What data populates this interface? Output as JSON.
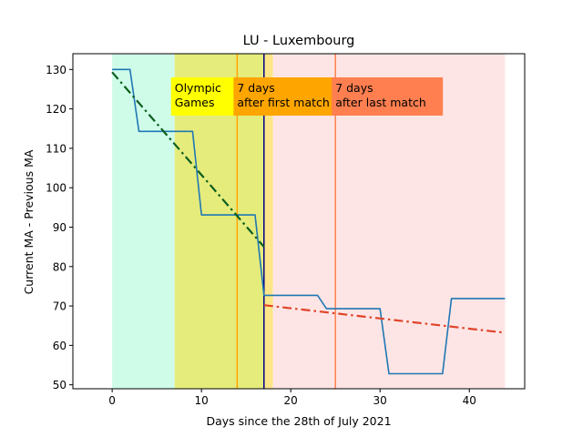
{
  "chart_data": {
    "type": "line",
    "title": "LU - Luxembourg",
    "xlabel": "Days since the 28th of July 2021",
    "ylabel": "Current MA - Previous MA",
    "xlim": [
      -4.4,
      46.2
    ],
    "ylim": [
      49,
      134
    ],
    "xticks": [
      0,
      10,
      20,
      30,
      40
    ],
    "yticks": [
      50,
      60,
      70,
      80,
      90,
      100,
      110,
      120,
      130
    ],
    "grid": false,
    "legend": "none",
    "regions": [
      {
        "from": 0,
        "to": 7,
        "color": "#cffce9"
      },
      {
        "from": 7,
        "to": 17,
        "color": "#e5ec7c"
      },
      {
        "from": 17,
        "to": 18,
        "color": "#fde68a"
      },
      {
        "from": 18,
        "to": 44,
        "color": "#fde5e5"
      }
    ],
    "vlines": [
      {
        "x": 14,
        "color": "#ffa500"
      },
      {
        "x": 17,
        "color": "#00008b"
      },
      {
        "x": 25,
        "color": "#ff7f50"
      }
    ],
    "annotations": [
      {
        "text": [
          "Olympic",
          "Games"
        ],
        "x": 7,
        "y": 128,
        "bg": "#ffff00"
      },
      {
        "text": [
          "7 days",
          "after first match"
        ],
        "x": 14,
        "y": 128,
        "bg": "#ffa500"
      },
      {
        "text": [
          "7 days",
          "after last match"
        ],
        "x": 25,
        "y": 128,
        "bg": "#ff7f50"
      }
    ],
    "series": [
      {
        "color": "#1f77b4",
        "style": "solid",
        "points": [
          [
            0,
            130
          ],
          [
            2,
            130
          ],
          [
            3,
            114.3
          ],
          [
            9,
            114.3
          ],
          [
            10,
            93.1
          ],
          [
            16,
            93.1
          ],
          [
            17,
            72.7
          ],
          [
            23,
            72.7
          ],
          [
            24,
            69.3
          ],
          [
            30,
            69.3
          ],
          [
            31,
            52.8
          ],
          [
            37,
            52.8
          ],
          [
            38,
            71.9
          ],
          [
            44,
            71.9
          ]
        ]
      },
      {
        "color": "#0d5e1e",
        "style": "dashdot",
        "points": [
          [
            0,
            129.3
          ],
          [
            17,
            85
          ]
        ]
      },
      {
        "color": "#e0442a",
        "style": "dashdot",
        "points": [
          [
            17,
            70.2
          ],
          [
            44,
            63.2
          ]
        ]
      }
    ]
  }
}
